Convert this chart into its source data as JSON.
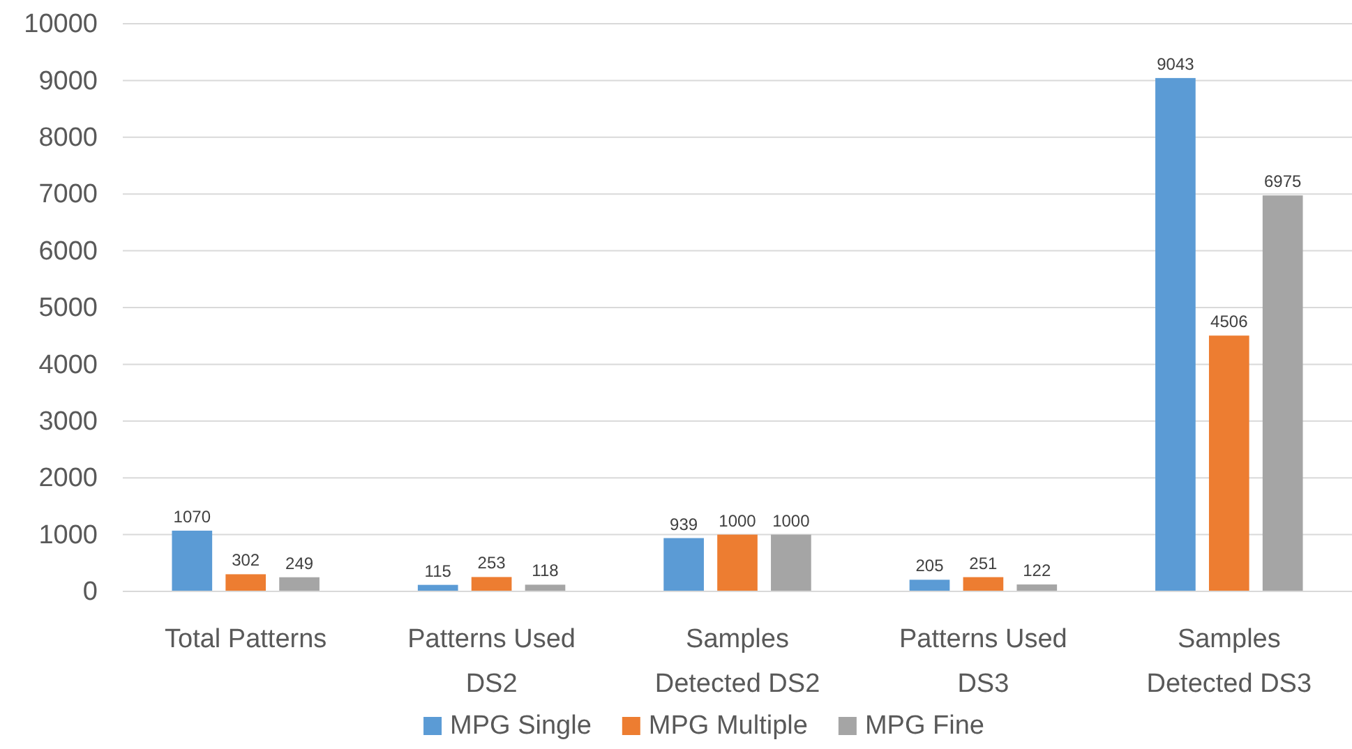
{
  "chart_data": {
    "type": "bar",
    "categories": [
      "Total Patterns",
      "Patterns Used DS2",
      "Samples Detected DS2",
      "Patterns Used DS3",
      "Samples Detected DS3"
    ],
    "series": [
      {
        "name": "MPG Single",
        "color": "#5b9bd5",
        "values": [
          1070,
          115,
          939,
          205,
          9043
        ]
      },
      {
        "name": "MPG Multiple",
        "color": "#ed7d31",
        "values": [
          302,
          253,
          1000,
          251,
          4506
        ]
      },
      {
        "name": "MPG Fine",
        "color": "#a5a5a5",
        "values": [
          249,
          118,
          1000,
          122,
          6975
        ]
      }
    ],
    "ylim": [
      0,
      10000
    ],
    "yticks": [
      0,
      1000,
      2000,
      3000,
      4000,
      5000,
      6000,
      7000,
      8000,
      9000,
      10000
    ],
    "grid": "y",
    "legend": "bottom",
    "data_labels": true
  }
}
